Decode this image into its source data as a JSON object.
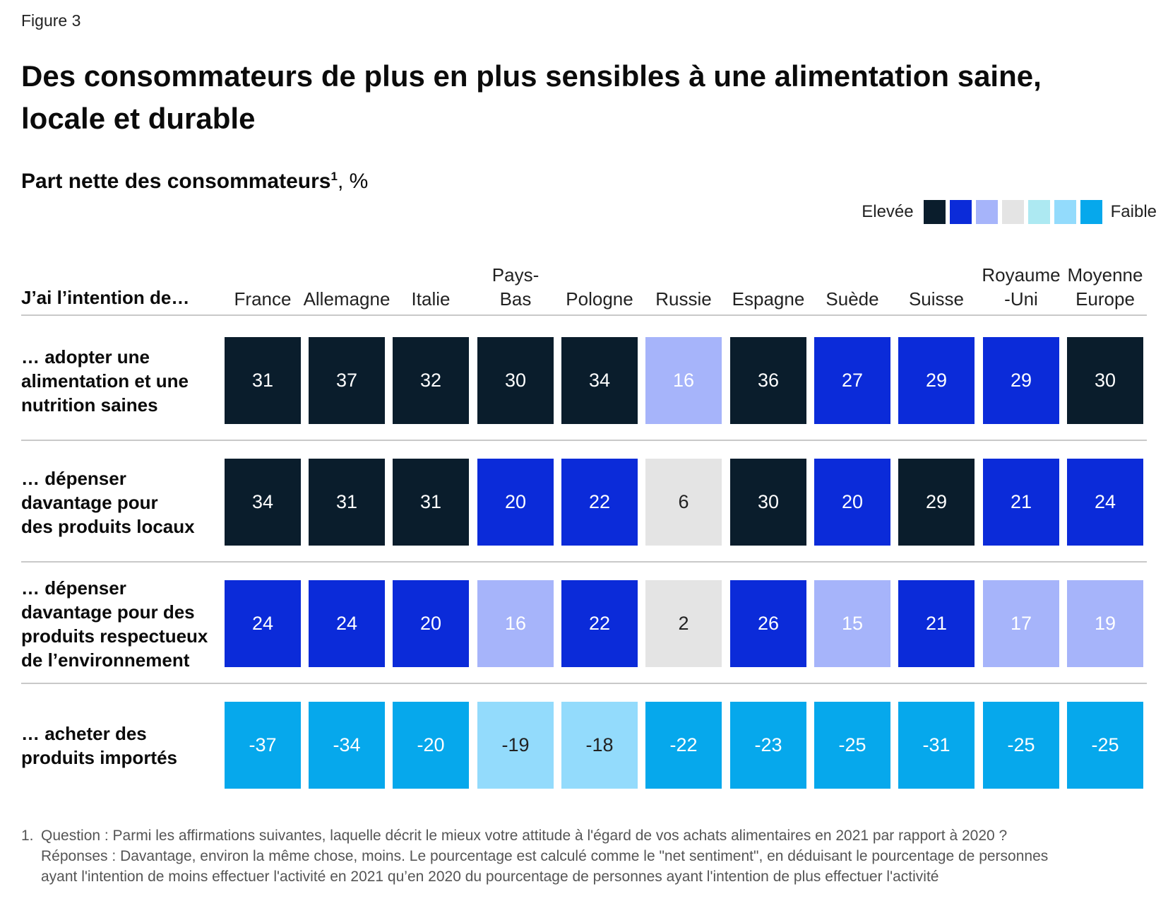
{
  "figure_label": "Figure 3",
  "title": "Des consommateurs de plus en plus sensibles à une alimentation saine, locale et durable",
  "subtitle": {
    "main": "Part nette des consommateurs",
    "sup": "1",
    "unit": ", %"
  },
  "legend": {
    "high_label": "Elevée",
    "low_label": "Faible",
    "swatches": [
      "#0a1d2c",
      "#0b2bd9",
      "#a6b4fa",
      "#e4e4e4",
      "#ade9f2",
      "#93dbfc",
      "#06a8ec"
    ]
  },
  "chart_data": {
    "type": "heatmap",
    "title": "Des consommateurs de plus en plus sensibles à une alimentation saine, locale et durable",
    "subtitle": "Part nette des consommateurs¹, %",
    "row_header": "J’ai l’intention de…",
    "columns": [
      "France",
      "Allemagne",
      "Italie",
      "Pays-Bas",
      "Pologne",
      "Russie",
      "Espagne",
      "Suède",
      "Suisse",
      "Royaume-Uni",
      "Moyenne Europe"
    ],
    "column_lines": [
      [
        "France"
      ],
      [
        "Allemagne"
      ],
      [
        "Italie"
      ],
      [
        "Pays-",
        "Bas"
      ],
      [
        "Pologne"
      ],
      [
        "Russie"
      ],
      [
        "Espagne"
      ],
      [
        "Suède"
      ],
      [
        "Suisse"
      ],
      [
        "Royaume",
        "-Uni"
      ],
      [
        "Moyenne",
        "Europe"
      ]
    ],
    "rows": [
      {
        "label_lines": [
          "… adopter une",
          "alimentation et une",
          "nutrition saines"
        ],
        "values": [
          31,
          37,
          32,
          30,
          34,
          16,
          36,
          27,
          29,
          29,
          30
        ],
        "levels": [
          0,
          0,
          0,
          0,
          0,
          2,
          0,
          1,
          1,
          1,
          0
        ]
      },
      {
        "label_lines": [
          "… dépenser",
          "davantage pour",
          "des produits locaux"
        ],
        "values": [
          34,
          31,
          31,
          20,
          22,
          6,
          30,
          20,
          29,
          21,
          24
        ],
        "levels": [
          0,
          0,
          0,
          1,
          1,
          3,
          0,
          1,
          0,
          1,
          1
        ]
      },
      {
        "label_lines": [
          "… dépenser",
          "davantage pour des",
          "produits respectueux",
          "de l’environnement"
        ],
        "values": [
          24,
          24,
          20,
          16,
          22,
          2,
          26,
          15,
          21,
          17,
          19
        ],
        "levels": [
          1,
          1,
          1,
          2,
          1,
          3,
          1,
          2,
          1,
          2,
          2
        ]
      },
      {
        "label_lines": [
          "… acheter des",
          "produits importés"
        ],
        "values": [
          -37,
          -34,
          -20,
          -19,
          -18,
          -22,
          -23,
          -25,
          -31,
          -25,
          -25
        ],
        "levels": [
          6,
          6,
          6,
          5,
          5,
          6,
          6,
          6,
          6,
          6,
          6
        ]
      }
    ],
    "legend": {
      "high": "Elevée",
      "low": "Faible",
      "position": "top-right"
    }
  },
  "footnote": {
    "number": "1.",
    "lines": [
      "Question : Parmi les affirmations suivantes, laquelle décrit le mieux votre attitude à l'égard de vos achats alimentaires en 2021 par rapport à 2020 ?",
      "Réponses : Davantage, environ la même chose, moins. Le pourcentage est calculé comme le \"net sentiment\", en déduisant le pourcentage de personnes",
      "ayant l'intention de moins effectuer l'activité en 2021 qu’en 2020 du pourcentage de personnes ayant l'intention de plus effectuer l'activité"
    ]
  }
}
